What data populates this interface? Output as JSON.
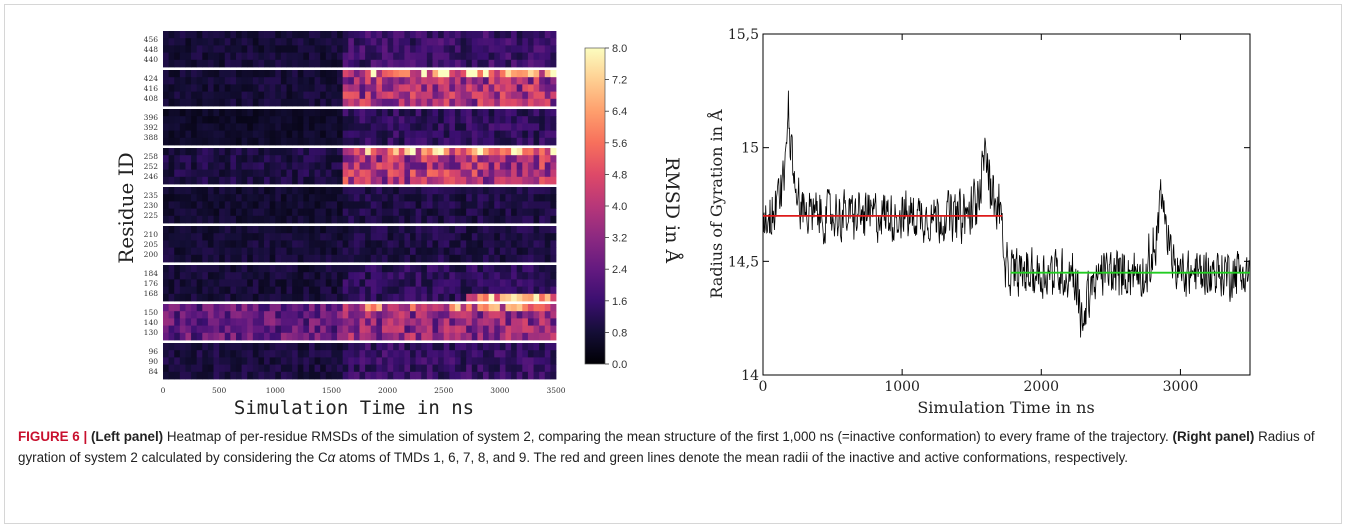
{
  "chart_data": [
    {
      "type": "heatmap",
      "title": "",
      "xlabel": "Simulation Time in ns",
      "ylabel": "Residue ID",
      "xlim": [
        0,
        3500
      ],
      "xticks": [
        "0",
        "500",
        "1000",
        "1500",
        "2000",
        "2500",
        "3000",
        "3500"
      ],
      "colorbar": {
        "label": "RMSD in Å",
        "range": [
          0.0,
          8.0
        ],
        "ticks": [
          "8.0",
          "7.2",
          "6.4",
          "5.6",
          "4.8",
          "4.0",
          "3.2",
          "2.4",
          "1.6",
          "0.8",
          "0.0"
        ],
        "colormap": "magma"
      },
      "bands": [
        {
          "ticks": [
            "456",
            "448",
            "440"
          ],
          "before_1600": 0.8,
          "after_1600": 1.6
        },
        {
          "ticks": [
            "424",
            "416",
            "408"
          ],
          "before_1600": 0.8,
          "after_1600": 3.6,
          "hot_top_after": 6.5
        },
        {
          "ticks": [
            "396",
            "392",
            "388"
          ],
          "before_1600": 0.6,
          "after_1600": 1.4
        },
        {
          "ticks": [
            "258",
            "252",
            "246"
          ],
          "before_1600": 1.0,
          "after_1600": 3.8,
          "hot_top_after": 6.0
        },
        {
          "ticks": [
            "235",
            "230",
            "225"
          ],
          "before_1600": 0.7,
          "after_1600": 1.0
        },
        {
          "ticks": [
            "210",
            "205",
            "200"
          ],
          "before_1600": 0.8,
          "after_1600": 1.0
        },
        {
          "ticks": [
            "184",
            "176",
            "168"
          ],
          "before_1600": 0.8,
          "after_1600": 1.3,
          "hot_bottom_after": 5.5
        },
        {
          "ticks": [
            "150",
            "140",
            "130"
          ],
          "before_1600": 2.4,
          "after_1600": 3.2,
          "hot_top_after": 5.2
        },
        {
          "ticks": [
            "96",
            "90",
            "84"
          ],
          "before_1600": 0.9,
          "after_1600": 1.5
        }
      ]
    },
    {
      "type": "line",
      "title": "",
      "xlabel": "Simulation Time in ns",
      "ylabel": "Radius of Gyration in Å",
      "xlim": [
        0,
        3500
      ],
      "ylim": [
        14,
        15.5
      ],
      "xticks": [
        "0",
        "1000",
        "2000",
        "3000"
      ],
      "yticks": [
        "14",
        "14,5",
        "15",
        "15,5"
      ],
      "series": [
        {
          "color": "#000000",
          "segments": [
            {
              "x_start": 0,
              "x_end": 1720,
              "mean": 14.7,
              "spread": 0.1
            },
            {
              "x_start": 1720,
              "x_end": 3500,
              "mean": 14.45,
              "spread": 0.1
            }
          ],
          "spikes": [
            {
              "x": 180,
              "y": 15.26
            },
            {
              "x": 1600,
              "y": 15.12
            },
            {
              "x": 2860,
              "y": 14.97
            },
            {
              "x": 2300,
              "y": 14.14
            }
          ]
        },
        {
          "color": "#dd1a1a",
          "x": [
            0,
            1720
          ],
          "y": [
            14.7,
            14.7
          ]
        },
        {
          "color": "#22cc22",
          "x": [
            1780,
            3500
          ],
          "y": [
            14.45,
            14.45
          ]
        }
      ]
    }
  ],
  "caption": {
    "label": "FIGURE 6 |",
    "left_panel_label": "(Left panel)",
    "left_panel_text": "Heatmap of per-residue RMSDs of the simulation of system 2, comparing the mean structure of the first 1,000 ns (=inactive conformation) to every frame of the trajectory.",
    "right_panel_label": "(Right panel)",
    "right_panel_text_1": "Radius of gyration of system 2 calculated by considering the C",
    "alpha": "α",
    "right_panel_text_2": " atoms of TMDs 1, 6, 7, 8, and 9. The red and green lines denote the mean radii of the inactive and active conformations, respectively."
  }
}
